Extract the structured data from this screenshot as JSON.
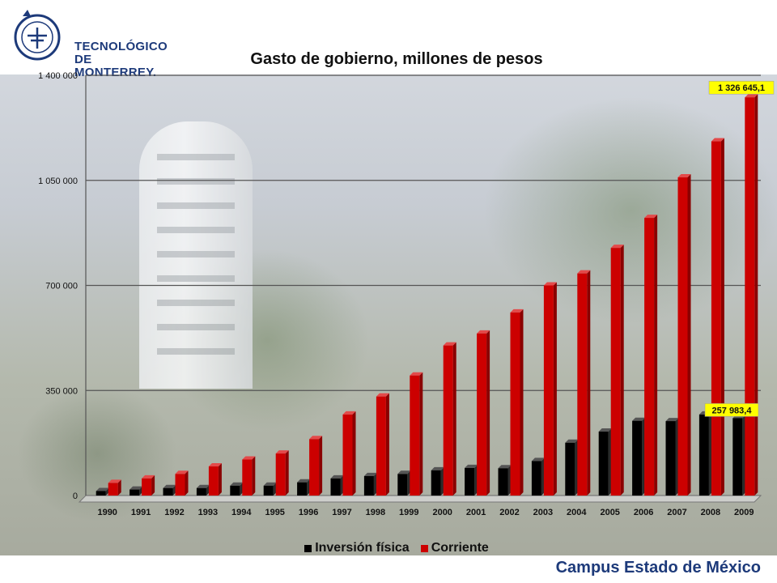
{
  "header": {
    "logo_line1": "TECNOLÓGICO",
    "logo_line2": "DE MONTERREY."
  },
  "footer": {
    "campus": "Campus Estado de México"
  },
  "colors": {
    "inversion": "#000000",
    "corriente": "#cc0000",
    "callout_bg": "#ffff00"
  },
  "chart_data": {
    "type": "bar",
    "title": "Gasto de gobierno, millones de pesos",
    "xlabel": "",
    "ylabel": "",
    "categories": [
      "1990",
      "1991",
      "1992",
      "1993",
      "1994",
      "1995",
      "1996",
      "1997",
      "1998",
      "1999",
      "2000",
      "2001",
      "2002",
      "2003",
      "2004",
      "2005",
      "2006",
      "2007",
      "2008",
      "2009"
    ],
    "series": [
      {
        "name": "Inversión física",
        "values": [
          15000,
          20000,
          25000,
          25000,
          33000,
          33000,
          44000,
          57000,
          65000,
          72000,
          84000,
          92000,
          91000,
          115000,
          176000,
          213000,
          249000,
          248000,
          270000,
          257983.4
        ]
      },
      {
        "name": "Corriente",
        "values": [
          42000,
          57000,
          72000,
          97000,
          120000,
          140000,
          188000,
          270000,
          330000,
          400000,
          500000,
          540000,
          610000,
          700000,
          740000,
          825000,
          925000,
          1060000,
          1180000,
          1326645.1
        ]
      }
    ],
    "ylim": [
      0,
      1400000
    ],
    "yticks": [
      "0",
      "350 000",
      "700 000",
      "1 050 000",
      "1 400 000"
    ],
    "ytick_values": [
      0,
      350000,
      700000,
      1050000,
      1400000
    ],
    "grid": true,
    "legend": "bottom",
    "annotations": [
      {
        "text": "1 326 645,1",
        "series": 1,
        "index": 19
      },
      {
        "text": "257 983,4",
        "series": 0,
        "index": 19
      }
    ]
  }
}
